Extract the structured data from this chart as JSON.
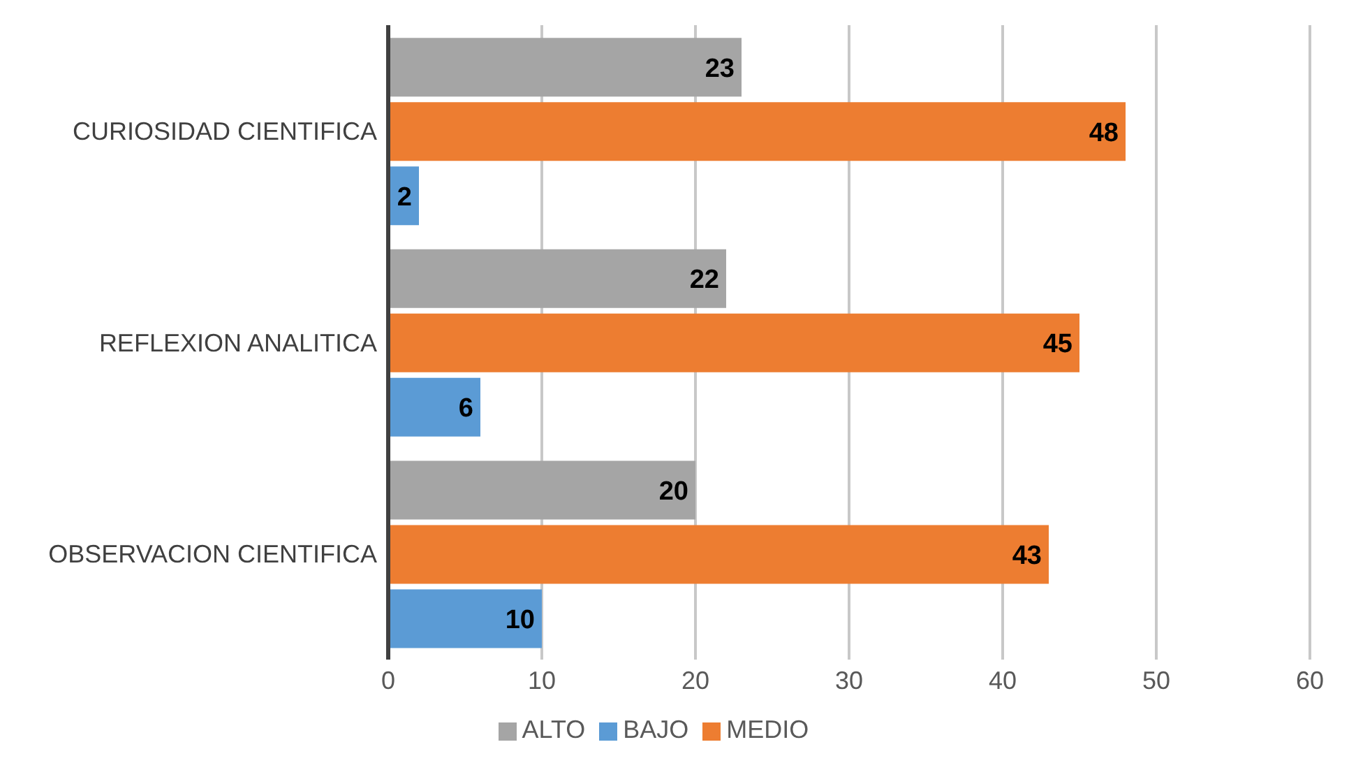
{
  "chart_data": {
    "type": "bar",
    "orientation": "horizontal",
    "categories": [
      "CURIOSIDAD CIENTIFICA",
      "REFLEXION ANALITICA",
      "OBSERVACION CIENTIFICA"
    ],
    "series": [
      {
        "name": "ALTO",
        "color": "#a5a5a5",
        "values": [
          23,
          22,
          20
        ]
      },
      {
        "name": "MEDIO",
        "color": "#ed7d31",
        "values": [
          48,
          45,
          43
        ]
      },
      {
        "name": "BAJO",
        "color": "#5b9bd5",
        "values": [
          2,
          6,
          10
        ]
      }
    ],
    "xlim": [
      0,
      60
    ],
    "xticks": [
      0,
      10,
      20,
      30,
      40,
      50,
      60
    ],
    "grid": "x",
    "legend": "bottom",
    "data_labels": true
  }
}
